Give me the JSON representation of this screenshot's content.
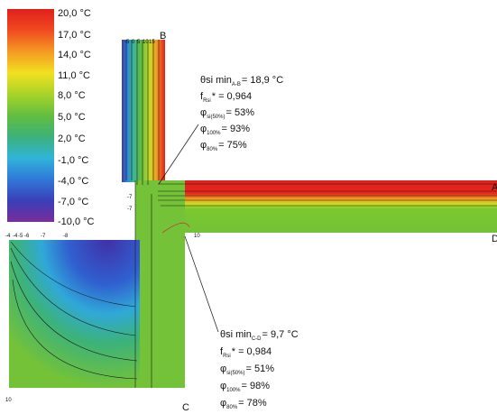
{
  "legend": {
    "labels": [
      "20,0 °C",
      "17,0 °C",
      "14,0 °C",
      "11,0 °C",
      "8,0 °C",
      "5,0 °C",
      "2,0 °C",
      "-1,0 °C",
      "-4,0 °C",
      "-7,0 °C",
      "-10,0 °C"
    ]
  },
  "points": [
    "A",
    "B",
    "C",
    "D"
  ],
  "annotations": [
    {
      "lines": [
        {
          "main": "θsi min",
          "sub": "A-B",
          "value": "= 18,9 °C"
        },
        {
          "main": "f",
          "sub": "Rsi",
          "value": "* = 0,964"
        },
        {
          "main": "φ",
          "sub": "si(50%)",
          "value": "= 53%"
        },
        {
          "main": "φ",
          "sub": "100%",
          "value": "= 93%"
        },
        {
          "main": "φ",
          "sub": "80%",
          "value": "= 75%"
        }
      ]
    },
    {
      "lines": [
        {
          "main": "θsi min",
          "sub": "C-D",
          "value": "= 9,7 °C"
        },
        {
          "main": "f",
          "sub": "Rsi",
          "value": "* = 0,984"
        },
        {
          "main": "φ",
          "sub": "si(50%)",
          "value": "= 51%"
        },
        {
          "main": "φ",
          "sub": "100%",
          "value": "= 98%"
        },
        {
          "main": "φ",
          "sub": "80%",
          "value": "= 78%"
        }
      ]
    }
  ],
  "isotherm_labels": [
    "-5",
    "0",
    "5",
    "10",
    "15",
    "-7",
    "-7",
    "-4",
    "-4",
    "-5",
    "-6",
    "-7",
    "-8",
    "10",
    "10"
  ]
}
